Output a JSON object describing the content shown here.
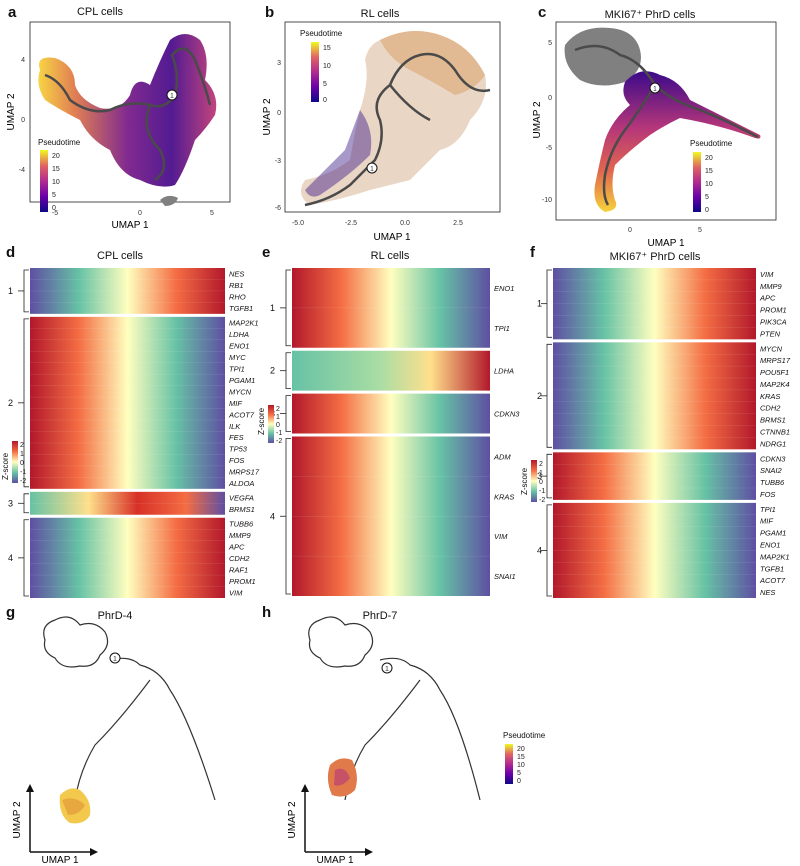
{
  "panels": {
    "a": {
      "letter": "a",
      "title": "CPL cells",
      "xlabel": "UMAP 1",
      "ylabel": "UMAP 2",
      "xticks": [
        "-5",
        "0",
        "5"
      ],
      "yticks": [
        "4",
        "0",
        "-4"
      ],
      "legend_title": "Pseudotime",
      "legend_ticks": [
        "20",
        "15",
        "10",
        "5",
        "0"
      ],
      "root_label": "1"
    },
    "b": {
      "letter": "b",
      "title": "RL cells",
      "xlabel": "UMAP 1",
      "ylabel": "UMAP 2",
      "xticks": [
        "-5.0",
        "-2.5",
        "0.0",
        "2.5"
      ],
      "yticks": [
        "3",
        "0",
        "-3",
        "-6"
      ],
      "legend_title": "Pseudotime",
      "legend_ticks": [
        "15",
        "10",
        "5",
        "0"
      ],
      "root_label": "1"
    },
    "c": {
      "letter": "c",
      "title": "MKI67⁺ PhrD cells",
      "xlabel": "UMAP 1",
      "ylabel": "UMAP 2",
      "xticks": [
        "0",
        "5"
      ],
      "yticks": [
        "5",
        "0",
        "-5",
        "-10"
      ],
      "legend_title": "Pseudotime",
      "legend_ticks": [
        "20",
        "15",
        "10",
        "5",
        "0"
      ],
      "root_label": "1"
    },
    "d": {
      "letter": "d",
      "title": "CPL cells",
      "zscore_title": "Z-score",
      "zscore_ticks": [
        "2",
        "1",
        "0",
        "-1",
        "-2"
      ],
      "clusters": [
        {
          "label": "1",
          "genes": [
            "NES",
            "RB1",
            "RHO",
            "TGFB1"
          ]
        },
        {
          "label": "2",
          "genes": [
            "MAP2K1",
            "LDHA",
            "ENO1",
            "MYC",
            "TPI1",
            "PGAM1",
            "MYCN",
            "MIF",
            "ACOT7",
            "ILK",
            "FES",
            "TP53",
            "FOS",
            "MRPS17",
            "ALDOA"
          ]
        },
        {
          "label": "3",
          "genes": [
            "VEGFA",
            "BRMS1"
          ]
        },
        {
          "label": "4",
          "genes": [
            "TUBB6",
            "MMP9",
            "APC",
            "CDH2",
            "RAF1",
            "PROM1",
            "VIM"
          ]
        }
      ]
    },
    "e": {
      "letter": "e",
      "title": "RL cells",
      "zscore_title": "Z-score",
      "zscore_ticks": [
        "2",
        "1",
        "0",
        "-1",
        "-2"
      ],
      "clusters": [
        {
          "label": "1",
          "genes": [
            "ENO1",
            "TPI1"
          ]
        },
        {
          "label": "2",
          "genes": [
            "LDHA"
          ]
        },
        {
          "label": "3",
          "genes": [
            "CDKN3"
          ]
        },
        {
          "label": "4",
          "genes": [
            "ADM",
            "KRAS",
            "VIM",
            "SNAI1"
          ]
        }
      ]
    },
    "f": {
      "letter": "f",
      "title": "MKI67⁺ PhrD cells",
      "zscore_title": "Z-score",
      "zscore_ticks": [
        "2",
        "1",
        "0",
        "-1",
        "-2"
      ],
      "clusters": [
        {
          "label": "1",
          "genes": [
            "VIM",
            "MMP9",
            "APC",
            "PROM1",
            "PIK3CA",
            "PTEN"
          ]
        },
        {
          "label": "2",
          "genes": [
            "MYCN",
            "MRPS17",
            "POU5F1",
            "MAP2K4",
            "KRAS",
            "CDH2",
            "BRMS1",
            "CTNNB1",
            "NDRG1"
          ]
        },
        {
          "label": "3",
          "genes": [
            "CDKN3",
            "SNAI2",
            "TUBB6",
            "FOS"
          ]
        },
        {
          "label": "4",
          "genes": [
            "TPI1",
            "MIF",
            "PGAM1",
            "ENO1",
            "MAP2K1",
            "TGFB1",
            "ACOT7",
            "NES"
          ]
        }
      ]
    },
    "g": {
      "letter": "g",
      "title": "PhrD-4",
      "xlabel": "UMAP 1",
      "ylabel": "UMAP 2",
      "root_label": "1"
    },
    "h": {
      "letter": "h",
      "title": "PhrD-7",
      "xlabel": "UMAP 1",
      "ylabel": "UMAP 2",
      "root_label": "1",
      "legend_title": "Pseudotime",
      "legend_ticks": [
        "20",
        "15",
        "10",
        "5",
        "0"
      ]
    }
  },
  "colors": {
    "plasma_low": "#2a0a6b",
    "plasma_mid": "#c03a76",
    "plasma_high": "#f6e23a",
    "heat_high": "#b2182b",
    "heat_low": "#5e4fa2",
    "trajectory": "#4a4a4a",
    "gray_cells": "#808080"
  }
}
